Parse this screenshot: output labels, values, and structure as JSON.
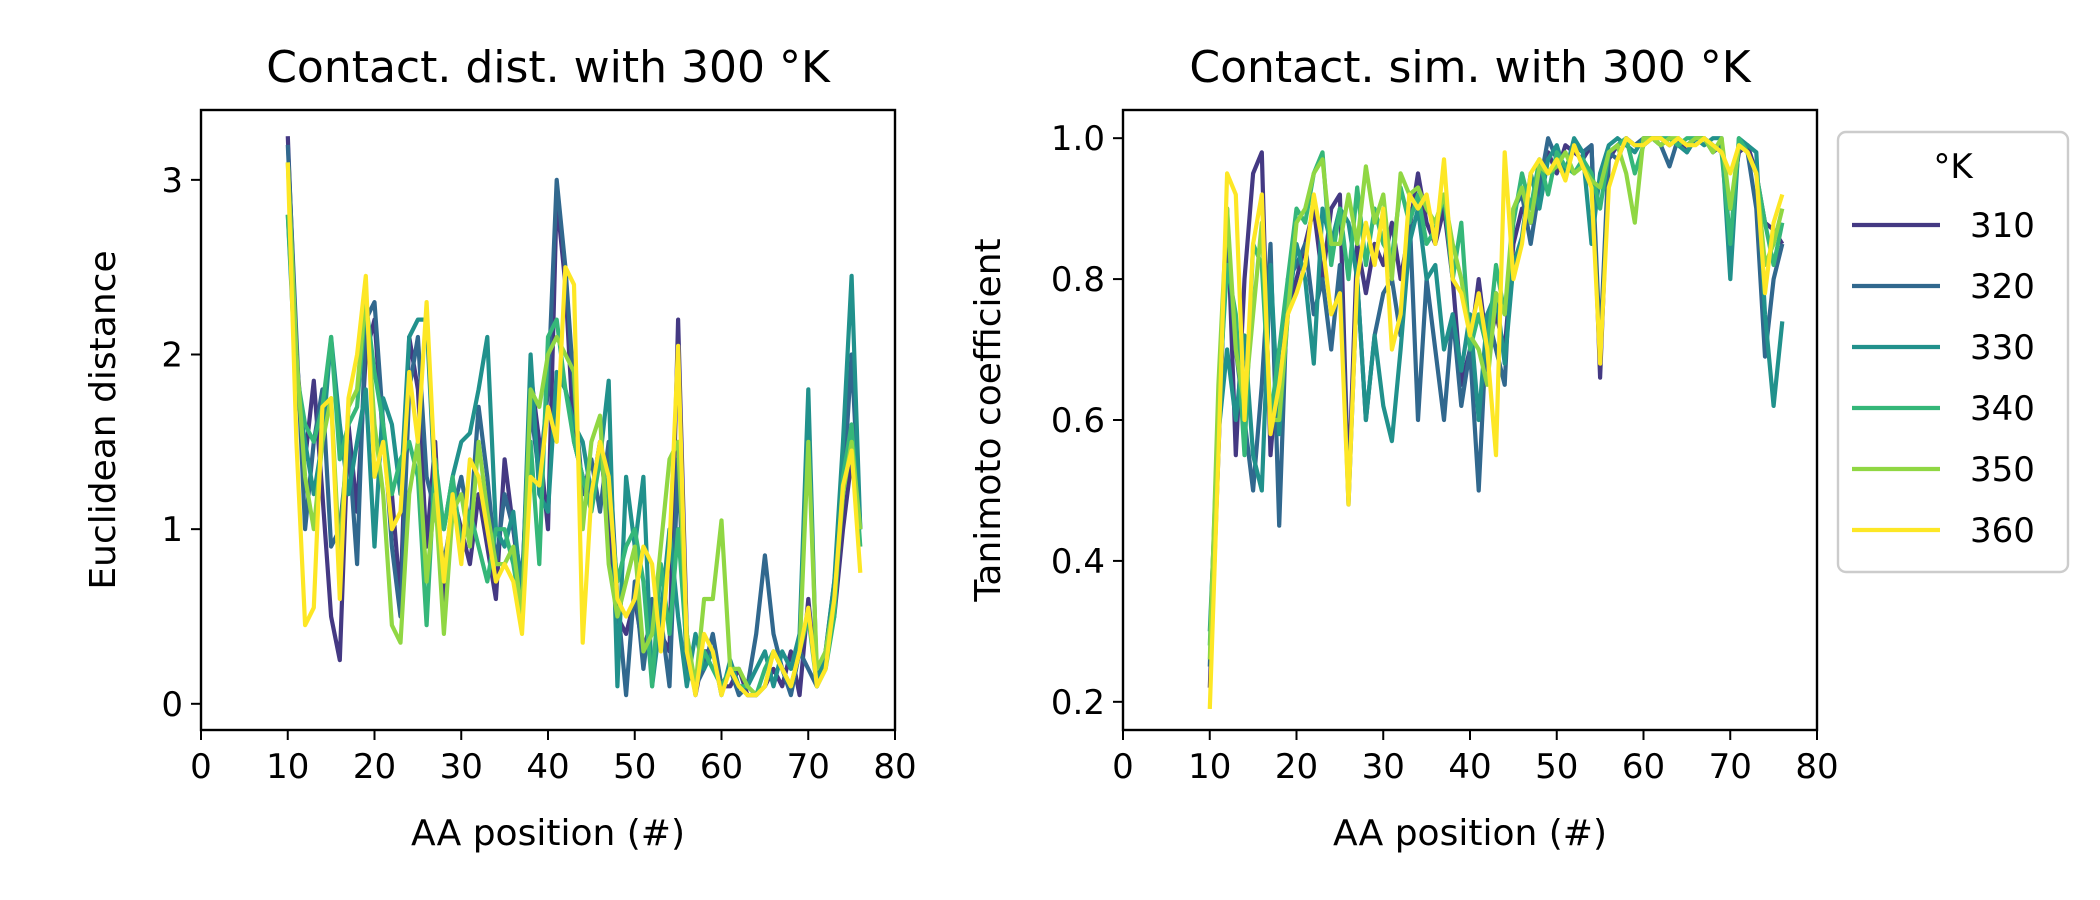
{
  "chart_data": [
    {
      "type": "line",
      "title": "Contact. dist. with 300$^\\circ$K",
      "title_display": "Contact. dist. with 300 °K",
      "xlabel": "AA position (#)",
      "ylabel": "Euclidean distance",
      "xlim": [
        0,
        80
      ],
      "ylim": [
        -0.15,
        3.4
      ],
      "xticks": [
        "0",
        "10",
        "20",
        "30",
        "40",
        "50",
        "60",
        "70",
        "80"
      ],
      "xtick_values": [
        0,
        10,
        20,
        30,
        40,
        50,
        60,
        70,
        80
      ],
      "yticks": [
        "0",
        "1",
        "2",
        "3"
      ],
      "ytick_values": [
        0,
        1,
        2,
        3
      ],
      "x": [
        10,
        11,
        12,
        13,
        14,
        15,
        16,
        17,
        18,
        19,
        20,
        21,
        22,
        23,
        24,
        25,
        26,
        27,
        28,
        29,
        30,
        31,
        32,
        33,
        34,
        35,
        36,
        37,
        38,
        39,
        40,
        41,
        42,
        43,
        44,
        45,
        46,
        47,
        48,
        49,
        50,
        51,
        52,
        53,
        54,
        55,
        56,
        57,
        58,
        59,
        60,
        61,
        62,
        63,
        64,
        65,
        66,
        67,
        68,
        69,
        70,
        71,
        72,
        73,
        74,
        75,
        76
      ],
      "series": [
        {
          "name": "310",
          "values": [
            3.25,
            2.0,
            1.4,
            1.85,
            1.2,
            0.5,
            0.25,
            1.6,
            1.1,
            2.0,
            2.2,
            1.5,
            1.2,
            0.6,
            2.1,
            1.8,
            0.9,
            1.5,
            0.5,
            1.2,
            1.0,
            0.8,
            1.2,
            0.9,
            0.6,
            1.4,
            1.0,
            0.6,
            1.9,
            1.5,
            1.0,
            2.9,
            2.4,
            1.5,
            1.3,
            1.2,
            1.5,
            1.0,
            0.5,
            0.4,
            0.6,
            0.3,
            0.5,
            0.4,
            0.3,
            2.2,
            0.4,
            0.05,
            0.3,
            0.3,
            0.1,
            0.1,
            0.2,
            0.05,
            0.05,
            0.1,
            0.2,
            0.1,
            0.3,
            0.05,
            0.6,
            0.1,
            0.3,
            0.5,
            1.0,
            1.4,
            1.0
          ]
        },
        {
          "name": "320",
          "values": [
            3.2,
            2.1,
            1.0,
            1.5,
            1.8,
            0.9,
            1.0,
            1.5,
            0.8,
            2.2,
            2.3,
            1.6,
            0.9,
            0.5,
            1.8,
            2.1,
            1.3,
            1.1,
            0.8,
            1.1,
            1.3,
            1.0,
            1.7,
            1.3,
            0.8,
            1.2,
            1.0,
            0.7,
            1.7,
            1.3,
            1.8,
            3.0,
            2.5,
            1.8,
            1.2,
            1.4,
            1.1,
            1.5,
            0.6,
            0.05,
            0.7,
            0.2,
            0.6,
            0.5,
            0.1,
            1.4,
            0.2,
            0.1,
            0.2,
            0.4,
            0.1,
            0.2,
            0.05,
            0.1,
            0.4,
            0.85,
            0.4,
            0.2,
            0.05,
            0.3,
            0.2,
            0.1,
            0.3,
            0.7,
            1.2,
            2.0,
            1.0
          ]
        },
        {
          "name": "330",
          "values": [
            2.8,
            1.8,
            1.5,
            1.2,
            1.5,
            2.1,
            1.6,
            1.2,
            1.5,
            1.8,
            0.9,
            1.75,
            1.6,
            1.2,
            2.1,
            2.2,
            2.2,
            1.2,
            1.0,
            1.3,
            1.5,
            1.55,
            1.8,
            2.1,
            1.0,
            0.9,
            1.1,
            0.6,
            2.0,
            1.2,
            1.1,
            1.9,
            1.8,
            1.6,
            1.5,
            1.2,
            1.4,
            1.85,
            0.1,
            1.3,
            0.9,
            1.3,
            0.1,
            0.5,
            1.0,
            0.5,
            0.1,
            0.4,
            0.2,
            0.3,
            0.05,
            0.25,
            0.1,
            0.1,
            0.2,
            0.3,
            0.1,
            0.3,
            0.2,
            0.4,
            1.8,
            0.1,
            0.3,
            0.7,
            1.5,
            2.45,
            1.0
          ]
        },
        {
          "name": "340",
          "values": [
            2.8,
            1.9,
            1.6,
            1.5,
            1.7,
            2.1,
            1.4,
            1.6,
            1.7,
            2.3,
            1.9,
            1.6,
            1.2,
            1.4,
            1.5,
            1.3,
            0.45,
            1.4,
            1.0,
            1.3,
            0.9,
            1.1,
            0.9,
            0.7,
            1.0,
            1.0,
            0.8,
            0.5,
            1.5,
            0.8,
            2.1,
            2.2,
            1.8,
            1.5,
            1.3,
            1.1,
            1.4,
            1.2,
            0.7,
            0.9,
            1.0,
            0.7,
            0.1,
            0.8,
            0.4,
            1.0,
            0.3,
            0.1,
            0.3,
            0.2,
            0.1,
            0.2,
            0.1,
            0.1,
            0.05,
            0.2,
            0.3,
            0.2,
            0.1,
            0.3,
            0.5,
            0.1,
            0.2,
            0.5,
            1.3,
            1.6,
            0.9
          ]
        },
        {
          "name": "350",
          "values": [
            3.1,
            2.0,
            1.3,
            1.0,
            1.5,
            1.75,
            0.8,
            1.7,
            1.8,
            2.35,
            1.6,
            1.2,
            0.45,
            0.35,
            1.2,
            1.5,
            0.7,
            1.2,
            0.4,
            1.1,
            1.2,
            0.9,
            1.5,
            1.1,
            0.8,
            0.8,
            0.9,
            0.5,
            1.8,
            1.7,
            2.0,
            2.1,
            2.0,
            1.9,
            1.0,
            1.5,
            1.65,
            0.8,
            0.5,
            0.7,
            0.9,
            0.3,
            0.4,
            0.9,
            1.4,
            1.5,
            0.4,
            0.1,
            0.6,
            0.6,
            1.05,
            0.2,
            0.2,
            0.1,
            0.05,
            0.1,
            0.3,
            0.2,
            0.1,
            0.3,
            1.5,
            0.2,
            0.3,
            0.6,
            1.2,
            1.5,
            1.0
          ]
        },
        {
          "name": "360",
          "values": [
            3.1,
            1.5,
            0.45,
            0.55,
            1.7,
            1.75,
            0.6,
            1.75,
            2.0,
            2.45,
            1.3,
            1.5,
            1.0,
            1.1,
            1.9,
            1.5,
            2.3,
            1.3,
            0.7,
            1.2,
            0.8,
            1.4,
            1.3,
            1.0,
            0.7,
            0.8,
            0.7,
            0.4,
            1.3,
            1.25,
            1.7,
            1.5,
            2.5,
            2.4,
            0.35,
            1.2,
            1.5,
            1.3,
            0.6,
            0.5,
            0.6,
            0.9,
            0.8,
            0.3,
            0.9,
            2.05,
            0.3,
            0.05,
            0.4,
            0.3,
            0.05,
            0.2,
            0.1,
            0.05,
            0.05,
            0.1,
            0.3,
            0.2,
            0.1,
            0.3,
            0.55,
            0.1,
            0.2,
            0.6,
            1.25,
            1.45,
            0.75
          ]
        }
      ]
    },
    {
      "type": "line",
      "title": "Contact. sim. with 300$^\\circ$K",
      "title_display": "Contact. sim. with 300 °K",
      "xlabel": "AA position (#)",
      "ylabel": "Tanimoto coefficient",
      "xlim": [
        0,
        80
      ],
      "ylim": [
        0.16,
        1.04
      ],
      "xticks": [
        "0",
        "10",
        "20",
        "30",
        "40",
        "50",
        "60",
        "70",
        "80"
      ],
      "xtick_values": [
        0,
        10,
        20,
        30,
        40,
        50,
        60,
        70,
        80
      ],
      "yticks": [
        "0.2",
        "0.4",
        "0.6",
        "0.8",
        "1.0"
      ],
      "ytick_values": [
        0.2,
        0.4,
        0.6,
        0.8,
        1.0
      ],
      "legend": {
        "title": "$^\\circ$K",
        "title_display": "°K",
        "placement": "right-outside"
      },
      "x": [
        10,
        11,
        12,
        13,
        14,
        15,
        16,
        17,
        18,
        19,
        20,
        21,
        22,
        23,
        24,
        25,
        26,
        27,
        28,
        29,
        30,
        31,
        32,
        33,
        34,
        35,
        36,
        37,
        38,
        39,
        40,
        41,
        42,
        43,
        44,
        45,
        46,
        47,
        48,
        49,
        50,
        51,
        52,
        53,
        54,
        55,
        56,
        57,
        58,
        59,
        60,
        61,
        62,
        63,
        64,
        65,
        66,
        67,
        68,
        69,
        70,
        71,
        72,
        73,
        74,
        75,
        76
      ],
      "series": [
        {
          "name": "310",
          "values": [
            0.22,
            0.55,
            0.9,
            0.55,
            0.8,
            0.95,
            0.98,
            0.55,
            0.7,
            0.75,
            0.8,
            0.85,
            0.9,
            0.8,
            0.9,
            0.92,
            0.5,
            0.85,
            0.78,
            0.85,
            0.82,
            0.88,
            0.8,
            0.87,
            0.95,
            0.88,
            0.85,
            0.9,
            0.8,
            0.65,
            0.7,
            0.8,
            0.7,
            0.75,
            0.7,
            0.85,
            0.9,
            0.88,
            0.95,
            0.98,
            0.95,
            0.99,
            0.98,
            0.97,
            0.99,
            0.66,
            0.97,
            0.99,
            1.0,
            0.99,
            0.99,
            1.0,
            1.0,
            0.99,
            1.0,
            0.98,
            1.0,
            1.0,
            0.99,
            0.98,
            0.9,
            0.98,
            0.99,
            0.95,
            0.88,
            0.87,
            0.85
          ]
        },
        {
          "name": "320",
          "values": [
            0.25,
            0.6,
            0.85,
            0.7,
            0.6,
            0.5,
            0.65,
            0.85,
            0.45,
            0.8,
            0.82,
            0.85,
            0.75,
            0.8,
            0.7,
            0.82,
            0.48,
            0.8,
            0.6,
            0.72,
            0.78,
            0.8,
            0.72,
            0.9,
            0.6,
            0.8,
            0.7,
            0.6,
            0.75,
            0.62,
            0.7,
            0.5,
            0.75,
            0.7,
            0.65,
            0.9,
            0.92,
            0.85,
            0.93,
            1.0,
            0.97,
            0.95,
            0.99,
            0.98,
            0.99,
            0.7,
            0.98,
            0.97,
            1.0,
            0.99,
            1.0,
            1.0,
            0.99,
            0.96,
            1.0,
            0.99,
            1.0,
            1.0,
            0.98,
            0.99,
            0.85,
            0.99,
            0.98,
            0.9,
            0.69,
            0.8,
            0.85
          ]
        },
        {
          "name": "330",
          "values": [
            0.3,
            0.58,
            0.7,
            0.6,
            0.72,
            0.55,
            0.5,
            0.82,
            0.58,
            0.75,
            0.85,
            0.8,
            0.68,
            0.9,
            0.85,
            0.9,
            0.88,
            0.8,
            0.6,
            0.72,
            0.62,
            0.57,
            0.7,
            0.85,
            0.9,
            0.8,
            0.82,
            0.7,
            0.75,
            0.67,
            0.75,
            0.6,
            0.75,
            0.78,
            0.68,
            0.82,
            0.86,
            0.95,
            0.9,
            0.97,
            0.99,
            0.95,
            1.0,
            0.98,
            0.85,
            0.95,
            0.99,
            1.0,
            0.99,
            0.98,
            1.0,
            1.0,
            0.99,
            1.0,
            0.99,
            0.98,
            1.0,
            0.99,
            1.0,
            1.0,
            0.8,
            1.0,
            0.99,
            0.98,
            0.75,
            0.62,
            0.74
          ]
        },
        {
          "name": "340",
          "values": [
            0.28,
            0.62,
            0.82,
            0.75,
            0.55,
            0.85,
            0.82,
            0.6,
            0.7,
            0.8,
            0.9,
            0.88,
            0.95,
            0.98,
            0.82,
            0.9,
            0.8,
            0.93,
            0.82,
            0.9,
            0.85,
            0.83,
            0.93,
            0.88,
            0.92,
            0.85,
            0.87,
            0.92,
            0.8,
            0.88,
            0.7,
            0.75,
            0.7,
            0.82,
            0.75,
            0.88,
            0.95,
            0.9,
            0.97,
            0.92,
            0.98,
            0.96,
            0.95,
            0.97,
            0.95,
            0.9,
            0.98,
            0.99,
            1.0,
            0.95,
            0.99,
            1.0,
            1.0,
            1.0,
            0.99,
            1.0,
            1.0,
            1.0,
            0.99,
            0.98,
            0.85,
            1.0,
            0.98,
            0.95,
            0.88,
            0.82,
            0.88
          ]
        },
        {
          "name": "350",
          "values": [
            0.26,
            0.65,
            0.9,
            0.7,
            0.62,
            0.75,
            0.88,
            0.6,
            0.6,
            0.75,
            0.88,
            0.9,
            0.95,
            0.97,
            0.85,
            0.85,
            0.92,
            0.85,
            0.96,
            0.88,
            0.92,
            0.8,
            0.95,
            0.92,
            0.93,
            0.9,
            0.88,
            0.92,
            0.85,
            0.8,
            0.72,
            0.7,
            0.65,
            0.78,
            0.75,
            0.9,
            0.93,
            0.88,
            0.96,
            0.95,
            0.96,
            0.98,
            0.95,
            0.96,
            0.94,
            0.93,
            0.98,
            0.99,
            0.95,
            0.88,
            1.0,
            1.0,
            0.99,
            1.0,
            1.0,
            0.99,
            1.0,
            1.0,
            0.98,
            1.0,
            0.9,
            0.99,
            0.98,
            0.95,
            0.82,
            0.85,
            0.9
          ]
        },
        {
          "name": "360",
          "values": [
            0.19,
            0.55,
            0.95,
            0.92,
            0.6,
            0.85,
            0.92,
            0.58,
            0.65,
            0.75,
            0.78,
            0.82,
            0.92,
            0.85,
            0.75,
            0.78,
            0.48,
            0.8,
            0.88,
            0.82,
            0.9,
            0.7,
            0.75,
            0.92,
            0.9,
            0.92,
            0.85,
            0.97,
            0.8,
            0.78,
            0.72,
            0.78,
            0.7,
            0.55,
            0.98,
            0.8,
            0.85,
            0.95,
            0.97,
            0.95,
            0.97,
            0.94,
            0.99,
            0.96,
            0.93,
            0.68,
            0.93,
            0.97,
            1.0,
            0.99,
            0.99,
            1.0,
            1.0,
            0.99,
            1.0,
            0.99,
            0.99,
            1.0,
            0.99,
            0.98,
            0.95,
            0.99,
            0.98,
            0.95,
            0.78,
            0.88,
            0.92
          ]
        }
      ]
    }
  ],
  "series_colors": {
    "310": "#443983",
    "320": "#31688e",
    "330": "#21918c",
    "340": "#35b779",
    "350": "#90d743",
    "360": "#fde725"
  }
}
